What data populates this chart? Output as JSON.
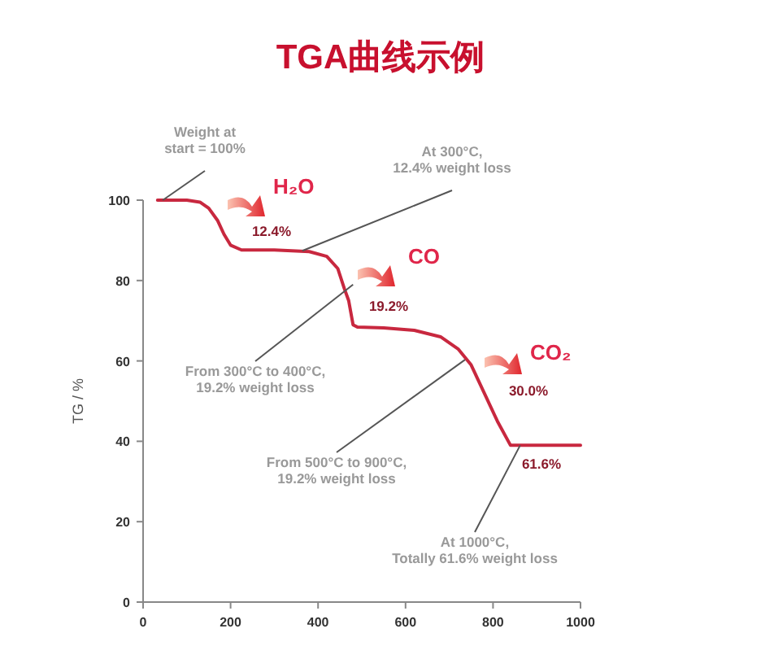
{
  "chart_data": {
    "type": "line",
    "title": "TGA曲线示例",
    "ylabel": "TG / %",
    "x": [
      33,
      100,
      130,
      150,
      170,
      185,
      200,
      225,
      300,
      380,
      420,
      445,
      460,
      470,
      480,
      490,
      550,
      620,
      680,
      720,
      750,
      780,
      810,
      840,
      1000
    ],
    "series": [
      {
        "color": "#c8283f",
        "values": [
          100,
          100,
          99.5,
          98,
          95,
          91.5,
          88.8,
          87.6,
          87.6,
          87.2,
          86,
          83,
          78,
          75,
          69,
          68.4,
          68.2,
          67.6,
          66,
          63,
          59,
          52,
          45,
          39,
          39
        ]
      }
    ],
    "xlim": [
      0,
      1000
    ],
    "xticks": [
      0,
      200,
      400,
      600,
      800,
      1000
    ],
    "ylim": [
      0,
      100
    ],
    "yticks": [
      0,
      20,
      40,
      60,
      80,
      100
    ],
    "marker": "none",
    "line_style": "solid",
    "annotations": [
      {
        "text": "Weight at\nstart = 100%",
        "x": 45,
        "y": 100
      },
      {
        "text": "At 300°C,\n12.4% weight loss",
        "x": 364,
        "y": 87.4
      },
      {
        "text": "From 300°C to 400°C,\n19.2% weight loss",
        "x": 480,
        "y": 79
      },
      {
        "text": "From 500°C to 900°C,\n19.2% weight loss",
        "x": 736,
        "y": 60.3
      },
      {
        "text": "At 1000°C,\nTotally 61.6% weight loss",
        "x": 862,
        "y": 39
      },
      "H₂O",
      "12.4%",
      "CO",
      "19.2%",
      "CO₂",
      "30.0%",
      "61.6%"
    ]
  }
}
